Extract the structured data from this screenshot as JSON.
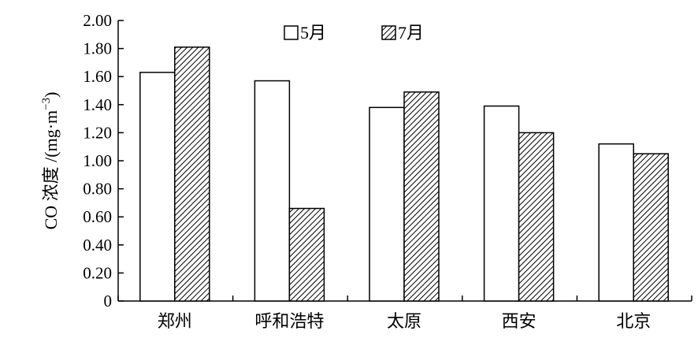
{
  "chart_data": {
    "type": "bar",
    "title": "",
    "xlabel": "",
    "ylabel": "CO 浓度 /(mg·m",
    "ylabel_sup": "−3",
    "ylabel_close": ")",
    "ylim": [
      0,
      2.0
    ],
    "yticks": [
      "0",
      "0.20",
      "0.40",
      "0.60",
      "0.80",
      "1.00",
      "1.20",
      "1.40",
      "1.60",
      "1.80",
      "2.00"
    ],
    "categories": [
      "郑州",
      "呼和浩特",
      "太原",
      "西安",
      "北京"
    ],
    "series": [
      {
        "name": "5月",
        "values": [
          1.63,
          1.57,
          1.38,
          1.39,
          1.12
        ],
        "fill": "#ffffff",
        "pattern": "none"
      },
      {
        "name": "7月",
        "values": [
          1.81,
          0.66,
          1.49,
          1.2,
          1.05
        ],
        "fill": "#ffffff",
        "pattern": "diagonal-hatch"
      }
    ],
    "legend_position": "top",
    "grid": false
  }
}
